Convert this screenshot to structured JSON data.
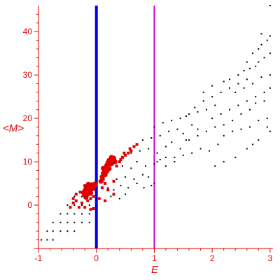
{
  "chart_data": {
    "type": "scatter",
    "title": "",
    "xlabel": "E",
    "ylabel": "<M>",
    "xlim": [
      -1.0,
      3.05
    ],
    "ylim": [
      -10.0,
      46.0
    ],
    "x_ticks": [
      -1,
      0,
      1,
      2,
      3
    ],
    "y_ticks": [
      0,
      10,
      20,
      30,
      40
    ],
    "axis_color": "#e00000",
    "vertical_lines": [
      {
        "x": 0.0,
        "color": "#0000ee"
      },
      {
        "x": 1.0,
        "color": "#cc00cc"
      }
    ],
    "series": [
      {
        "marker": "small-black-dot",
        "color": "#000000",
        "points": [
          [
            -0.95,
            -8
          ],
          [
            -0.85,
            -8
          ],
          [
            -0.75,
            -8
          ],
          [
            -0.85,
            -6
          ],
          [
            -0.75,
            -6
          ],
          [
            -0.62,
            -6
          ],
          [
            -0.5,
            -6
          ],
          [
            -0.38,
            -6
          ],
          [
            -0.75,
            -4
          ],
          [
            -0.62,
            -4
          ],
          [
            -0.5,
            -4
          ],
          [
            -0.38,
            -4
          ],
          [
            -0.25,
            -4
          ],
          [
            -0.12,
            -4
          ],
          [
            -0.62,
            -2
          ],
          [
            -0.5,
            -2
          ],
          [
            -0.38,
            -2
          ],
          [
            -0.25,
            -2
          ],
          [
            -0.12,
            -2
          ],
          [
            -0.5,
            0
          ],
          [
            -0.38,
            0
          ],
          [
            -0.25,
            0
          ],
          [
            -0.12,
            0
          ],
          [
            -0.38,
            2
          ],
          [
            -0.25,
            2
          ],
          [
            0.1,
            4
          ],
          [
            0.2,
            4
          ],
          [
            0.3,
            3.5
          ],
          [
            0.42,
            4.5
          ],
          [
            0.55,
            4
          ],
          [
            0.7,
            5
          ],
          [
            0.82,
            4
          ],
          [
            0.95,
            4.5
          ],
          [
            1.0,
            5
          ],
          [
            0.25,
            2
          ],
          [
            0.4,
            1.5
          ],
          [
            0.5,
            2.5
          ],
          [
            0.35,
            6
          ],
          [
            0.5,
            6.5
          ],
          [
            0.65,
            6
          ],
          [
            0.8,
            7
          ],
          [
            0.9,
            6.5
          ],
          [
            0.45,
            9
          ],
          [
            0.6,
            8.5
          ],
          [
            0.7,
            10
          ],
          [
            0.85,
            9
          ],
          [
            1.0,
            9.5
          ],
          [
            1.1,
            10.5
          ],
          [
            1.2,
            9
          ],
          [
            1.35,
            11
          ],
          [
            0.6,
            12
          ],
          [
            0.75,
            12.5
          ],
          [
            0.9,
            13
          ],
          [
            1.05,
            12
          ],
          [
            1.2,
            13.5
          ],
          [
            1.3,
            14.5
          ],
          [
            1.45,
            13
          ],
          [
            1.55,
            15
          ],
          [
            0.8,
            15
          ],
          [
            0.95,
            15.5
          ],
          [
            1.1,
            16
          ],
          [
            1.25,
            17
          ],
          [
            1.4,
            17.5
          ],
          [
            1.5,
            16.5
          ],
          [
            1.65,
            18.5
          ],
          [
            1.75,
            17.5
          ],
          [
            1.05,
            10
          ],
          [
            1.2,
            11
          ],
          [
            1.35,
            10
          ],
          [
            1.5,
            11.5
          ],
          [
            1.65,
            12
          ],
          [
            1.8,
            13
          ],
          [
            1.95,
            12.5
          ],
          [
            2.1,
            14
          ],
          [
            1.0,
            18
          ],
          [
            1.15,
            19
          ],
          [
            1.3,
            19.5
          ],
          [
            1.45,
            20
          ],
          [
            1.6,
            21
          ],
          [
            1.75,
            21.5
          ],
          [
            1.9,
            22
          ],
          [
            2.05,
            23
          ],
          [
            1.55,
            20.5
          ],
          [
            1.7,
            22.5
          ],
          [
            1.85,
            24
          ],
          [
            2.0,
            25
          ],
          [
            2.15,
            26
          ],
          [
            2.3,
            27
          ],
          [
            2.45,
            28
          ],
          [
            2.6,
            29
          ],
          [
            1.6,
            15
          ],
          [
            1.75,
            16
          ],
          [
            1.9,
            17
          ],
          [
            2.05,
            18
          ],
          [
            2.2,
            18.5
          ],
          [
            2.35,
            19.5
          ],
          [
            2.5,
            21
          ],
          [
            2.65,
            22
          ],
          [
            2.2,
            16
          ],
          [
            2.35,
            17
          ],
          [
            2.5,
            17.5
          ],
          [
            2.65,
            18
          ],
          [
            2.8,
            19.5
          ],
          [
            2.95,
            20
          ],
          [
            2.75,
            23.5
          ],
          [
            2.9,
            24
          ],
          [
            2.0,
            20
          ],
          [
            2.15,
            21
          ],
          [
            2.3,
            22
          ],
          [
            2.45,
            23
          ],
          [
            2.6,
            24
          ],
          [
            2.75,
            25
          ],
          [
            2.9,
            26
          ],
          [
            3.0,
            27
          ],
          [
            2.3,
            29
          ],
          [
            2.45,
            30
          ],
          [
            2.55,
            31
          ],
          [
            2.65,
            31.5
          ],
          [
            2.75,
            32
          ],
          [
            2.8,
            33
          ],
          [
            2.9,
            34
          ],
          [
            3.0,
            35
          ],
          [
            2.6,
            33
          ],
          [
            2.7,
            35
          ],
          [
            2.8,
            36
          ],
          [
            2.85,
            37
          ],
          [
            2.95,
            38
          ],
          [
            3.0,
            39
          ],
          [
            2.85,
            39.5
          ],
          [
            3.0,
            46
          ],
          [
            1.85,
            26
          ],
          [
            2.0,
            27.5
          ],
          [
            2.2,
            28.5
          ],
          [
            2.4,
            26
          ],
          [
            2.55,
            27
          ],
          [
            2.7,
            28
          ],
          [
            2.85,
            29.5
          ],
          [
            3.0,
            30
          ],
          [
            2.05,
            9
          ],
          [
            2.2,
            10
          ],
          [
            2.4,
            11
          ],
          [
            2.6,
            13
          ],
          [
            2.8,
            15
          ],
          [
            3.0,
            17
          ],
          [
            2.95,
            18
          ],
          [
            2.7,
            14
          ]
        ]
      },
      {
        "marker": "red-square",
        "color": "#e00000",
        "points": [
          [
            -0.4,
            1.5
          ],
          [
            -0.35,
            2.5
          ],
          [
            -0.4,
            0.5
          ],
          [
            -0.3,
            -0.5
          ],
          [
            -0.45,
            -0.5
          ],
          [
            -0.25,
            0.5
          ],
          [
            -0.2,
            -0.5
          ],
          [
            -0.15,
            1
          ],
          [
            -0.1,
            -1
          ],
          [
            -0.28,
            3
          ],
          [
            -0.2,
            4.5
          ],
          [
            -0.1,
            2.5
          ],
          [
            -0.05,
            2
          ],
          [
            0.05,
            1.5
          ],
          [
            0.15,
            1
          ],
          [
            0.1,
            4
          ],
          [
            0.12,
            6
          ],
          [
            0.15,
            5
          ],
          [
            0.2,
            8
          ],
          [
            0.28,
            9.5
          ],
          [
            0.3,
            5.5
          ],
          [
            0.2,
            3.5
          ],
          [
            -0.1,
            1.5
          ],
          [
            0.4,
            10
          ],
          [
            0.45,
            11
          ],
          [
            0.5,
            11.5
          ],
          [
            0.55,
            12
          ],
          [
            0.6,
            12.5
          ],
          [
            0.65,
            13.5
          ],
          [
            0.7,
            14
          ],
          [
            0.58,
            13
          ],
          [
            0.35,
            9
          ],
          [
            0.42,
            10.5
          ],
          [
            0.48,
            12
          ],
          [
            -0.35,
            1
          ],
          [
            -0.05,
            -0.8
          ],
          [
            0.3,
            2.5
          ]
        ]
      },
      {
        "marker": "red-dot-large",
        "color": "#e00000",
        "points": [
          [
            -0.22,
            2.8
          ],
          [
            -0.2,
            3.3
          ],
          [
            -0.18,
            3.8
          ],
          [
            -0.16,
            4.3
          ],
          [
            -0.14,
            4.8
          ],
          [
            -0.2,
            2.3
          ],
          [
            -0.18,
            1.8
          ],
          [
            -0.12,
            3.5
          ],
          [
            -0.12,
            4.2
          ],
          [
            -0.08,
            4.7
          ],
          [
            -0.06,
            3.8
          ],
          [
            -0.04,
            4.4
          ],
          [
            -0.02,
            4.9
          ],
          [
            -0.1,
            2.8
          ],
          [
            0.1,
            6.5
          ],
          [
            0.12,
            7.3
          ],
          [
            0.14,
            8.0
          ],
          [
            0.16,
            8.6
          ],
          [
            0.18,
            9.2
          ],
          [
            0.2,
            9.8
          ],
          [
            0.22,
            10.3
          ],
          [
            0.15,
            7
          ],
          [
            0.25,
            9.5
          ],
          [
            0.28,
            10.2
          ],
          [
            0.3,
            10.8
          ],
          [
            0.22,
            8.4
          ],
          [
            0.12,
            8.5
          ],
          [
            0.26,
            11
          ],
          [
            0.08,
            5.5
          ],
          [
            0.18,
            7.8
          ],
          [
            0.32,
            10
          ],
          [
            -0.16,
            2.5
          ]
        ]
      }
    ]
  }
}
